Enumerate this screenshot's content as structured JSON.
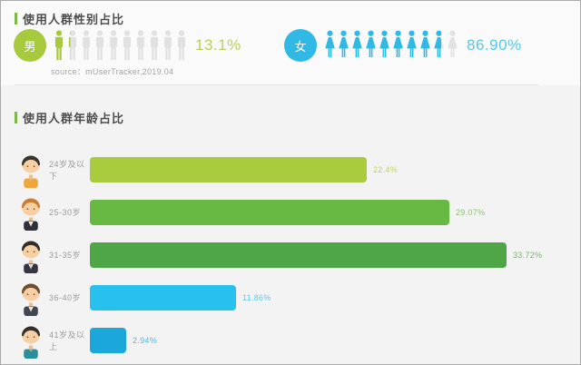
{
  "accent": {
    "title_marker_color": "#7cb845",
    "title_text_color": "#4d4d4d"
  },
  "chart_data": [
    {
      "type": "pictogram",
      "title": "使用人群性别占比",
      "source": "source：mUserTracker,2019.04",
      "icons_per_series": 10,
      "empty_icon_color": "#e2e1e2",
      "series": [
        {
          "name": "男",
          "value": 13.1,
          "value_label": "13.1%",
          "color": "#a6c93d",
          "value_label_color": "#b9d158",
          "icon": "male"
        },
        {
          "name": "女",
          "value": 86.9,
          "value_label": "86.90%",
          "color": "#2fb9e4",
          "value_label_color": "#58c6e9",
          "icon": "female"
        }
      ]
    },
    {
      "type": "bar",
      "orientation": "horizontal",
      "title": "使用人群年龄占比",
      "categories": [
        "24岁及以下",
        "25-30岁",
        "31-35岁",
        "36-40岁",
        "41岁及以上"
      ],
      "values": [
        22.4,
        29.07,
        33.72,
        11.86,
        2.94
      ],
      "value_labels": [
        "22.4%",
        "29.07%",
        "33.72%",
        "11.86%",
        "2.94%"
      ],
      "bar_colors": [
        "#a9cb3e",
        "#67b944",
        "#4ea647",
        "#28c0ec",
        "#1ba7dc"
      ],
      "category_label_color": "#9b9b9b",
      "xlim": [
        0,
        35
      ],
      "grid": false,
      "legend": "none",
      "avatars": [
        {
          "name": "youth-avatar",
          "hair": "#3a352f",
          "shirt": "#efa73c",
          "suit": false
        },
        {
          "name": "young-man-avatar",
          "hair": "#cc7c31",
          "shirt": "#30303a",
          "suit": true
        },
        {
          "name": "man-avatar",
          "hair": "#302d2b",
          "shirt": "#363540",
          "suit": true
        },
        {
          "name": "middle-aged-avatar",
          "hair": "#6f4c31",
          "shirt": "#42474f",
          "suit": true
        },
        {
          "name": "older-man-avatar",
          "hair": "#33302c",
          "shirt": "#2b8f9b",
          "suit": false
        }
      ]
    }
  ]
}
